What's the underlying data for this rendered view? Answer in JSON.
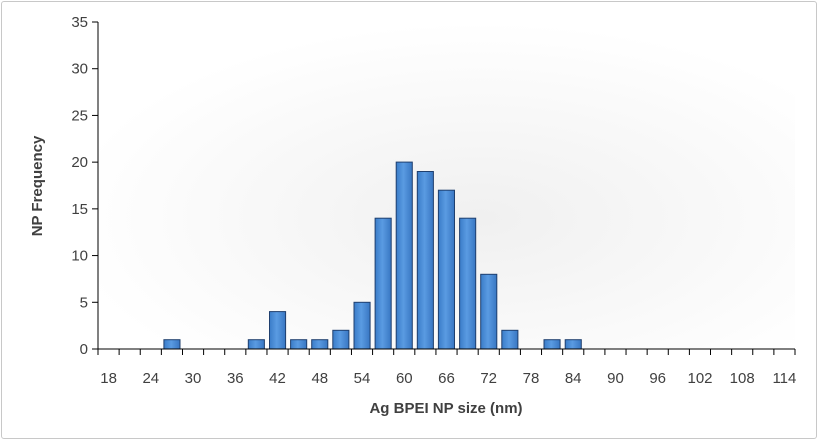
{
  "chart_data": {
    "type": "bar",
    "xlabel": "Ag BPEI NP size (nm)",
    "ylabel": "NP Frequency",
    "ylim": [
      0,
      35
    ],
    "yticks": [
      0,
      5,
      10,
      15,
      20,
      25,
      30,
      35
    ],
    "xtick_labels": [
      "18",
      "24",
      "30",
      "36",
      "42",
      "48",
      "54",
      "60",
      "66",
      "72",
      "78",
      "84",
      "90",
      "96",
      "102",
      "108",
      "114"
    ],
    "bin_width_nm": 3,
    "x": [
      18,
      21,
      24,
      27,
      30,
      33,
      36,
      39,
      42,
      45,
      48,
      51,
      54,
      57,
      60,
      63,
      66,
      69,
      72,
      75,
      78,
      81,
      84,
      87,
      90,
      93,
      96,
      99,
      102,
      105,
      108,
      111,
      114
    ],
    "values": [
      0,
      0,
      0,
      1,
      0,
      0,
      0,
      1,
      4,
      1,
      1,
      2,
      5,
      14,
      20,
      19,
      17,
      14,
      8,
      2,
      0,
      1,
      1,
      0,
      0,
      0,
      0,
      0,
      0,
      0,
      0,
      0,
      0
    ],
    "grid": false,
    "legend": "none",
    "bar_color": "#4a8fdc"
  }
}
